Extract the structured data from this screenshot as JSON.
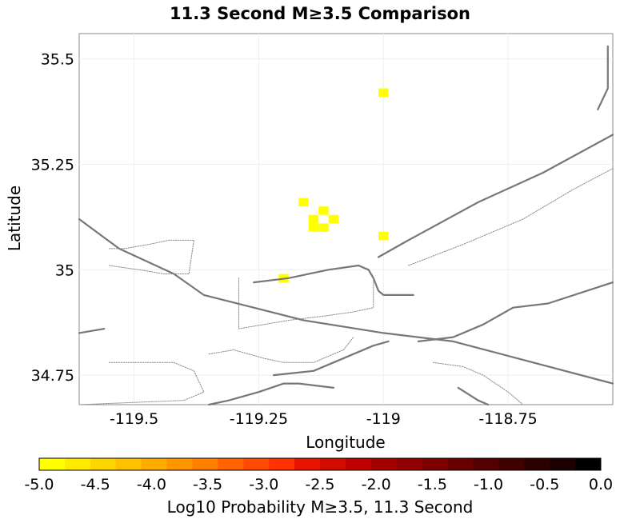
{
  "chart_data": {
    "type": "heatmap",
    "title": "11.3 Second M≥3.5 Comparison",
    "xlabel": "Longitude",
    "ylabel": "Latitude",
    "xlim": [
      -119.61,
      -118.54
    ],
    "ylim": [
      34.68,
      35.56
    ],
    "x_ticks": [
      -119.5,
      -119.25,
      -119.0,
      -118.75
    ],
    "x_tick_labels": [
      "-119.5",
      "-119.25",
      "-119",
      "-118.75"
    ],
    "y_ticks": [
      34.75,
      35.0,
      35.25,
      35.5
    ],
    "y_tick_labels": [
      "34.75",
      "35",
      "35.25",
      "35.5"
    ],
    "cell_size_deg": 0.02,
    "cells": [
      {
        "lon": -119.0,
        "lat": 35.42,
        "value": -5.0
      },
      {
        "lon": -119.16,
        "lat": 35.16,
        "value": -5.0
      },
      {
        "lon": -119.12,
        "lat": 35.14,
        "value": -5.0
      },
      {
        "lon": -119.14,
        "lat": 35.12,
        "value": -5.0
      },
      {
        "lon": -119.1,
        "lat": 35.12,
        "value": -5.0
      },
      {
        "lon": -119.14,
        "lat": 35.1,
        "value": -5.0
      },
      {
        "lon": -119.12,
        "lat": 35.1,
        "value": -5.0
      },
      {
        "lon": -119.0,
        "lat": 35.08,
        "value": -5.0
      },
      {
        "lon": -119.2,
        "lat": 34.98,
        "value": -5.0
      }
    ],
    "faults": [
      {
        "style": "solid",
        "points": [
          [
            -119.61,
            35.12
          ],
          [
            -119.53,
            35.05
          ],
          [
            -119.42,
            34.99
          ],
          [
            -119.36,
            34.94
          ],
          [
            -119.26,
            34.91
          ],
          [
            -119.16,
            34.88
          ],
          [
            -119.0,
            34.85
          ],
          [
            -118.86,
            34.83
          ],
          [
            -118.54,
            34.73
          ]
        ]
      },
      {
        "style": "solid",
        "points": [
          [
            -119.01,
            35.03
          ],
          [
            -118.95,
            35.07
          ],
          [
            -118.81,
            35.16
          ],
          [
            -118.68,
            35.23
          ],
          [
            -118.54,
            35.32
          ]
        ]
      },
      {
        "style": "solid",
        "points": [
          [
            -119.26,
            34.97
          ],
          [
            -119.19,
            34.98
          ],
          [
            -119.11,
            35.0
          ],
          [
            -119.05,
            35.01
          ],
          [
            -119.03,
            35.0
          ],
          [
            -119.02,
            34.98
          ],
          [
            -119.01,
            34.95
          ],
          [
            -119.0,
            34.94
          ],
          [
            -118.96,
            34.94
          ],
          [
            -118.94,
            34.94
          ]
        ]
      },
      {
        "style": "solid",
        "points": [
          [
            -118.93,
            34.83
          ],
          [
            -118.86,
            34.84
          ],
          [
            -118.8,
            34.87
          ],
          [
            -118.74,
            34.91
          ],
          [
            -118.67,
            34.92
          ],
          [
            -118.54,
            34.97
          ]
        ]
      },
      {
        "style": "solid",
        "points": [
          [
            -119.61,
            34.85
          ],
          [
            -119.56,
            34.86
          ]
        ]
      },
      {
        "style": "solid",
        "points": [
          [
            -119.22,
            34.75
          ],
          [
            -119.14,
            34.76
          ],
          [
            -119.02,
            34.82
          ],
          [
            -118.99,
            34.83
          ]
        ]
      },
      {
        "style": "solid",
        "points": [
          [
            -119.35,
            34.68
          ],
          [
            -119.31,
            34.69
          ],
          [
            -119.25,
            34.71
          ],
          [
            -119.2,
            34.73
          ],
          [
            -119.17,
            34.73
          ],
          [
            -119.1,
            34.72
          ]
        ]
      },
      {
        "style": "solid",
        "points": [
          [
            -118.85,
            34.72
          ],
          [
            -118.81,
            34.69
          ],
          [
            -118.79,
            34.68
          ]
        ]
      },
      {
        "style": "solid",
        "points": [
          [
            -118.55,
            35.53
          ],
          [
            -118.55,
            35.43
          ],
          [
            -118.57,
            35.38
          ]
        ]
      },
      {
        "style": "dotted",
        "points": [
          [
            -119.55,
            35.05
          ],
          [
            -119.52,
            35.05
          ],
          [
            -119.47,
            35.06
          ],
          [
            -119.43,
            35.07
          ],
          [
            -119.38,
            35.07
          ],
          [
            -119.39,
            34.99
          ],
          [
            -119.44,
            34.99
          ],
          [
            -119.49,
            35.0
          ],
          [
            -119.55,
            35.01
          ]
        ]
      },
      {
        "style": "dotted",
        "points": [
          [
            -119.29,
            34.98
          ],
          [
            -119.29,
            34.86
          ],
          [
            -119.24,
            34.87
          ],
          [
            -119.19,
            34.88
          ],
          [
            -119.12,
            34.89
          ],
          [
            -119.06,
            34.9
          ],
          [
            -119.02,
            34.91
          ],
          [
            -119.02,
            34.98
          ]
        ]
      },
      {
        "style": "dotted",
        "points": [
          [
            -119.55,
            34.78
          ],
          [
            -119.42,
            34.78
          ],
          [
            -119.38,
            34.76
          ],
          [
            -119.36,
            34.71
          ],
          [
            -119.4,
            34.69
          ],
          [
            -119.61,
            34.68
          ]
        ]
      },
      {
        "style": "dotted",
        "points": [
          [
            -119.35,
            34.8
          ],
          [
            -119.3,
            34.81
          ],
          [
            -119.24,
            34.79
          ],
          [
            -119.2,
            34.78
          ],
          [
            -119.14,
            34.78
          ],
          [
            -119.08,
            34.81
          ],
          [
            -119.06,
            34.84
          ]
        ]
      },
      {
        "style": "dotted",
        "points": [
          [
            -118.95,
            35.01
          ],
          [
            -118.84,
            35.06
          ],
          [
            -118.72,
            35.12
          ],
          [
            -118.62,
            35.19
          ],
          [
            -118.54,
            35.24
          ]
        ]
      },
      {
        "style": "dotted",
        "points": [
          [
            -118.9,
            34.78
          ],
          [
            -118.84,
            34.77
          ],
          [
            -118.8,
            34.75
          ],
          [
            -118.75,
            34.71
          ],
          [
            -118.72,
            34.68
          ]
        ]
      }
    ],
    "colorbar": {
      "label": "Log10 Probability M≥3.5, 11.3 Second",
      "ticks": [
        "-5.0",
        "-4.5",
        "-4.0",
        "-3.5",
        "-3.0",
        "-2.5",
        "-2.0",
        "-1.5",
        "-1.0",
        "-0.5",
        "0.0"
      ],
      "min": -5.0,
      "max": 0.0,
      "colors": [
        "#ffff00",
        "#ffea00",
        "#ffd500",
        "#ffc000",
        "#ffab00",
        "#ff9500",
        "#ff8000",
        "#ff6400",
        "#ff4b00",
        "#ff3200",
        "#e61400",
        "#d20a00",
        "#be0000",
        "#a50000",
        "#910000",
        "#7d0000",
        "#690000",
        "#550000",
        "#410000",
        "#2d0000",
        "#1e0000",
        "#000000"
      ]
    }
  }
}
